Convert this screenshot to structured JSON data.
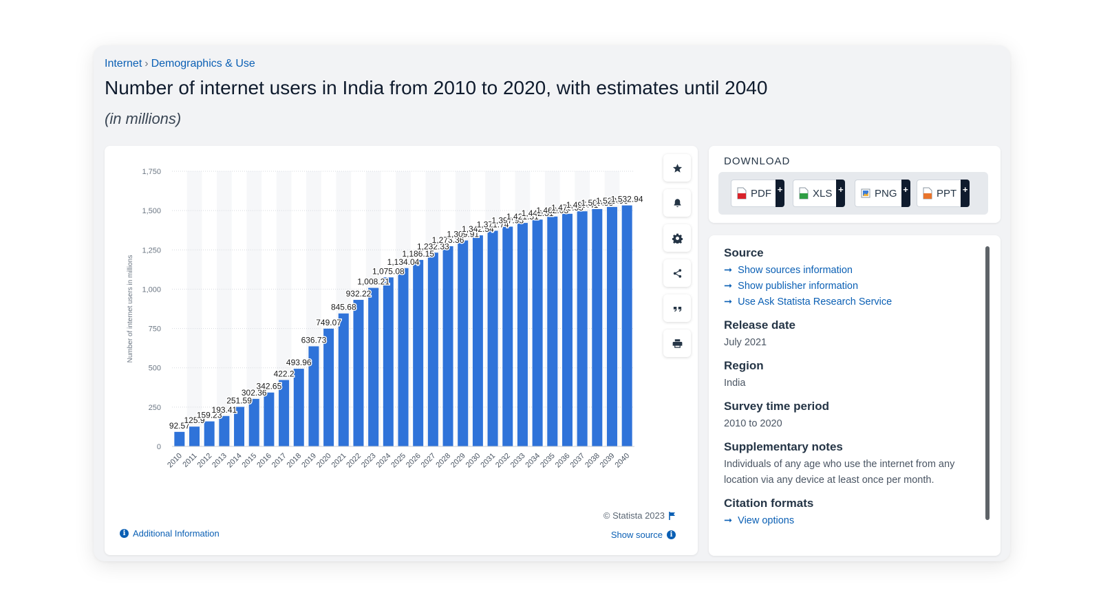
{
  "breadcrumb": {
    "items": [
      "Internet",
      "Demographics & Use"
    ],
    "separator": "›"
  },
  "title": "Number of internet users in India from 2010 to 2020, with estimates until 2040",
  "subtitle": "(in millions)",
  "chart_data": {
    "type": "bar",
    "title": "Number of internet users in India from 2010 to 2020, with estimates until 2040",
    "xlabel": "",
    "ylabel": "Number of internet users in millions",
    "ylim": [
      0,
      1750
    ],
    "yticks": [
      0,
      250,
      500,
      750,
      1000,
      1250,
      1500,
      1750
    ],
    "ytick_labels": [
      "0",
      "250",
      "500",
      "750",
      "1,000",
      "1,250",
      "1,500",
      "1,750"
    ],
    "color": "#2f73d9",
    "categories": [
      "2010",
      "2011",
      "2012",
      "2013",
      "2014",
      "2015",
      "2016",
      "2017",
      "2018",
      "2019",
      "2020",
      "2021",
      "2022",
      "2023",
      "2024",
      "2025",
      "2026",
      "2027",
      "2028",
      "2029",
      "2030",
      "2031",
      "2032",
      "2033",
      "2034",
      "2035",
      "2036",
      "2037",
      "2038",
      "2039",
      "2040"
    ],
    "values": [
      92.57,
      125.9,
      159.23,
      193.41,
      251.59,
      302.36,
      342.65,
      422.2,
      493.96,
      636.73,
      749.07,
      845.68,
      932.22,
      1008.21,
      1075.08,
      1134.04,
      1186.15,
      1232.33,
      1273.36,
      1309.91,
      1342.54,
      1371.74,
      1397.93,
      1421.51,
      1442.81,
      1462.08,
      1479.55,
      1495.41,
      1509.83,
      1522.96,
      1532.94
    ],
    "data_labels": [
      "92.57",
      "125.9",
      "159.23",
      "193.41",
      "251.59",
      "302.36",
      "342.65",
      "422.2",
      "493.96",
      "636.73",
      "749.07",
      "845.68",
      "932.22",
      "1,008.21",
      "1,075.08",
      "1,134.04",
      "1,186.15",
      "1,232.33",
      "1,273.36",
      "1,309.91",
      "1,342.54",
      "1,371.74",
      "1,397.93",
      "1,421.51",
      "1,442.81",
      "1,462.08",
      "1,479.55",
      "1,495.41",
      "1,509.83",
      "1,522.96",
      "1,532.94"
    ],
    "grid": true
  },
  "chart_footer": {
    "copyright": "© Statista 2023",
    "show_source": "Show source",
    "additional_info": "Additional Information"
  },
  "toolbar": {
    "icons": [
      "star-icon",
      "bell-icon",
      "gear-icon",
      "share-icon",
      "quote-icon",
      "print-icon"
    ]
  },
  "download": {
    "title": "DOWNLOAD",
    "buttons": [
      {
        "label": "PDF",
        "color": "#d8232a"
      },
      {
        "label": "XLS",
        "color": "#2f9e44"
      },
      {
        "label": "PNG",
        "color": "#3b7dd8"
      },
      {
        "label": "PPT",
        "color": "#e8742c"
      }
    ]
  },
  "meta": {
    "source_heading": "Source",
    "source_links": [
      "Show sources information",
      "Show publisher information",
      "Use Ask Statista Research Service"
    ],
    "release_heading": "Release date",
    "release_value": "July 2021",
    "region_heading": "Region",
    "region_value": "India",
    "survey_heading": "Survey time period",
    "survey_value": "2010 to 2020",
    "notes_heading": "Supplementary notes",
    "notes_value": "Individuals of any age who use the internet from any location via any device at least once per month.",
    "citation_heading": "Citation formats",
    "citation_link": "View options"
  }
}
